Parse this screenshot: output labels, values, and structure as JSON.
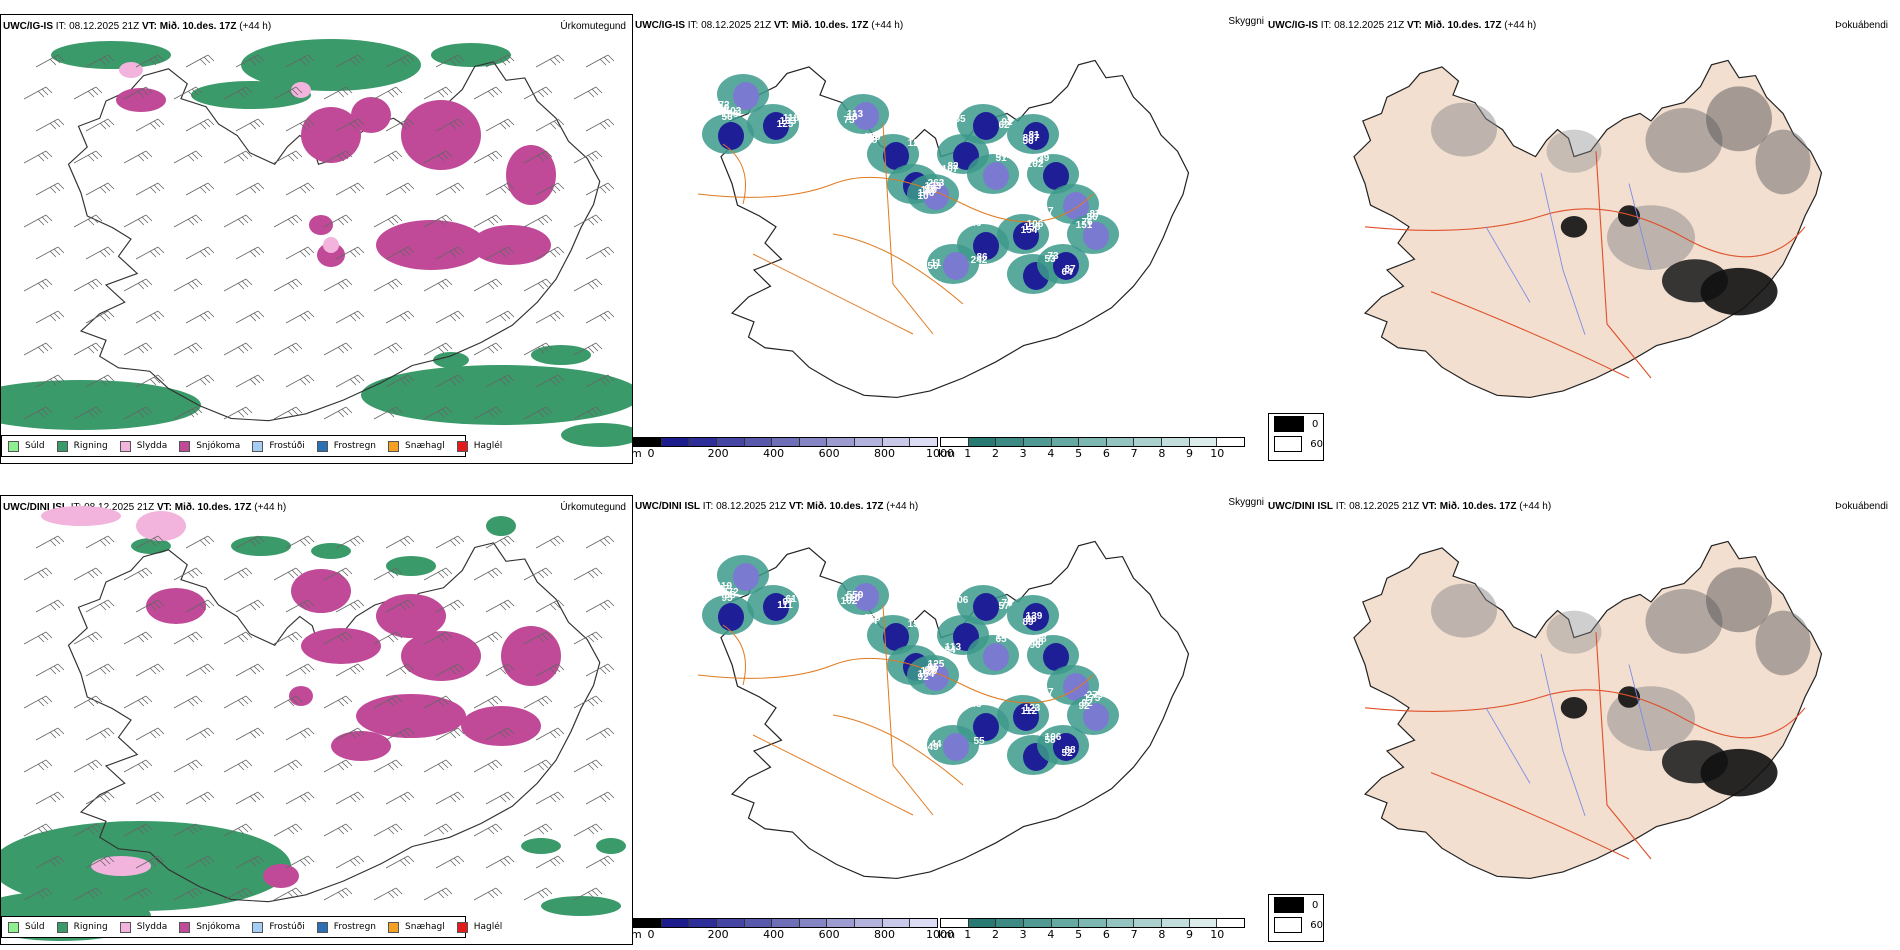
{
  "rows": [
    {
      "model": "UWC/IG-IS",
      "it_label": "IT:",
      "it_value": "08.12.2025 21Z",
      "vt_label": "VT:",
      "vt_value": "Mið. 10.des. 17Z",
      "lead": "(+44 h)",
      "panels": {
        "precip_type": "Úrkomutegund",
        "visibility": "Skyggni",
        "fog": "Þokuábendi"
      },
      "visibility_labels": [
        "100",
        "125",
        "56",
        "75",
        "122",
        "10",
        "99",
        "58",
        "62",
        "51",
        "56",
        "102",
        "86",
        "154",
        "40",
        "50",
        "53",
        "64",
        "151",
        "160",
        "133",
        "186",
        "18",
        "145",
        "146",
        "133",
        "107",
        "92",
        "842",
        "837",
        "84",
        "87",
        "138",
        "242",
        "11",
        "73",
        "87",
        "76",
        "72",
        "118",
        "103",
        "113",
        "128",
        "110",
        "263",
        "82",
        "85",
        "52",
        "81",
        "139",
        "77",
        "106",
        "86"
      ]
    },
    {
      "model": "UWC/DINI ISL",
      "it_label": "IT:",
      "it_value": "08.12.2025 21Z",
      "vt_label": "VT:",
      "vt_value": "Mið. 10.des. 17Z",
      "lead": "(+44 h)",
      "panels": {
        "precip_type": "Úrkomutegund",
        "visibility": "Skyggni",
        "fog": "Þokuábendi"
      },
      "visibility_labels": [
        "119",
        "111",
        "95",
        "102",
        "158",
        "92",
        "69",
        "60",
        "57",
        "65",
        "89",
        "96",
        "175",
        "112",
        "43",
        "49",
        "58",
        "52",
        "92",
        "147",
        "97",
        "88",
        "110",
        "134",
        "154",
        "95",
        "84",
        "76",
        "146",
        "98",
        "88",
        "279",
        "123",
        "55",
        "44",
        "106",
        "88",
        "92",
        "119",
        "61",
        "72",
        "559",
        "678",
        "129",
        "125",
        "113",
        "106",
        "134",
        "139",
        "68",
        "77"
      ]
    }
  ],
  "precip_legend": [
    {
      "label": "Súld",
      "color": "#8ef08e"
    },
    {
      "label": "Rigning",
      "color": "#3a9a6a"
    },
    {
      "label": "Slydda",
      "color": "#f2b3dc"
    },
    {
      "label": "Snjókoma",
      "color": "#c04a98"
    },
    {
      "label": "Frostúði",
      "color": "#a6cdf5"
    },
    {
      "label": "Frostregn",
      "color": "#2b6fb4"
    },
    {
      "label": "Snæhagl",
      "color": "#f5a021"
    },
    {
      "label": "Haglél",
      "color": "#e21b1b"
    }
  ],
  "cloud_base_colorbar": {
    "unit": "m",
    "ticks": [
      "0",
      "200",
      "400",
      "600",
      "800",
      "1000"
    ],
    "colors": [
      "#000000",
      "#1c1c8c",
      "#2e2e98",
      "#4545a4",
      "#5858ac",
      "#6f6fb8",
      "#8585c4",
      "#9c9cd0",
      "#b2b2dc",
      "#c8c8e8",
      "#dcdcf4"
    ]
  },
  "visibility_colorbar": {
    "unit": "km",
    "ticks": [
      "1",
      "2",
      "3",
      "4",
      "5",
      "6",
      "7",
      "8",
      "9",
      "10"
    ],
    "colors": [
      "#ffffff",
      "#2a7a74",
      "#3d8a84",
      "#519a94",
      "#66a9a3",
      "#7cb7b2",
      "#93c4c0",
      "#aad1ce",
      "#c2dedc",
      "#dbecea",
      "#ffffff"
    ]
  },
  "fog_legend": [
    {
      "label": "0",
      "color": "#000000"
    },
    {
      "label": "60",
      "color": "#ffffff"
    }
  ]
}
